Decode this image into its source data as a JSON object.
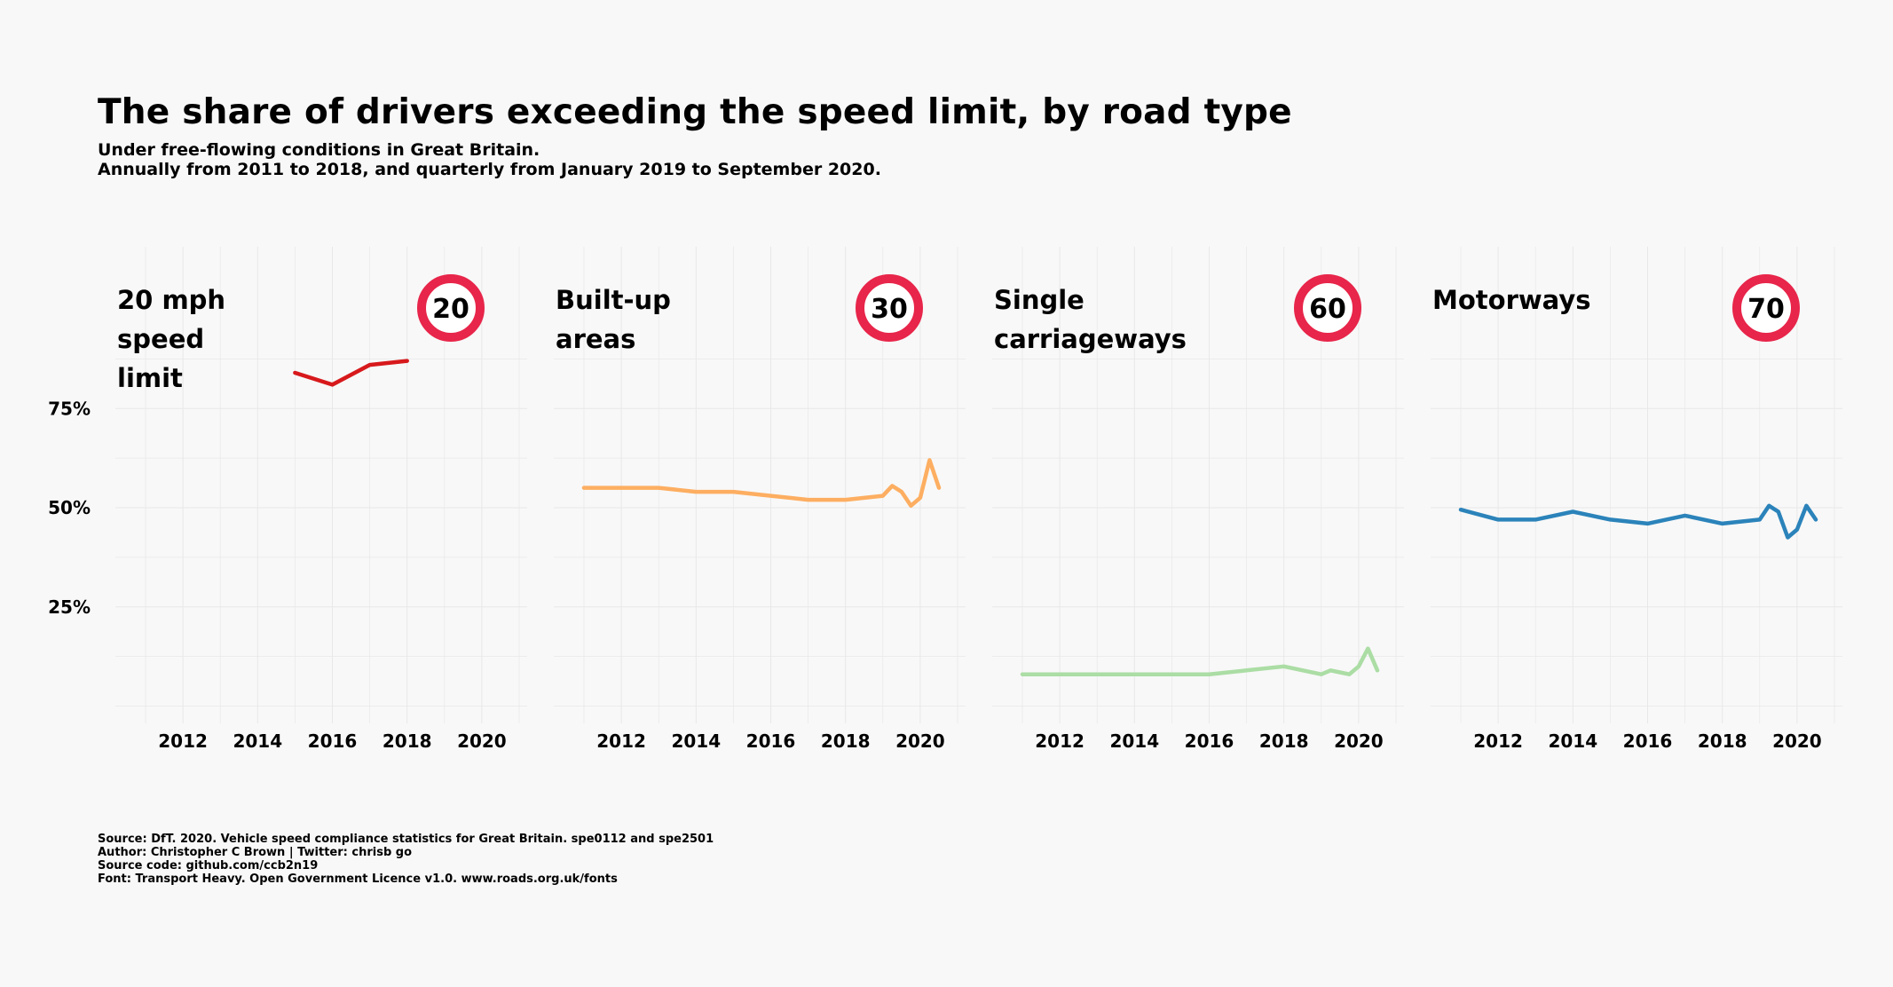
{
  "title": "The share of drivers exceeding the speed limit, by road type",
  "subtitle": [
    "Under free-flowing conditions in Great Britain.",
    "Annually from 2011 to 2018, and quarterly from January 2019 to September 2020."
  ],
  "caption": [
    "Source: DfT. 2020. Vehicle speed compliance statistics for Great Britain. spe0112 and spe2501",
    "Author: Christopher C Brown | Twitter: chrisb go",
    "Source code: github.com/ccb2n19",
    "Font: Transport Heavy. Open Government Licence v1.0. www.roads.org.uk/fonts"
  ],
  "colors": {
    "background": "#f8f8f8",
    "grid": "#e8e8e8",
    "badge_ring": "#e8254a"
  },
  "chart_data": {
    "type": "line",
    "ylim": [
      -5,
      90
    ],
    "xlim": [
      2010,
      2021
    ],
    "y_ticks": [
      25,
      50,
      75
    ],
    "y_tick_labels": [
      "25%",
      "50%",
      "75%"
    ],
    "x_ticks": [
      2012,
      2014,
      2016,
      2018,
      2020
    ],
    "x_tick_labels": [
      "2012",
      "2014",
      "2016",
      "2018",
      "2020"
    ],
    "grid": true,
    "facets": [
      {
        "title": [
          "20 mph",
          "speed",
          "limit"
        ],
        "speed_limit": "20",
        "color": "#d7191c",
        "x": [
          2015,
          2016,
          2017,
          2018
        ],
        "y": [
          84,
          81,
          86,
          87
        ]
      },
      {
        "title": [
          "Built-up",
          "areas"
        ],
        "speed_limit": "30",
        "color": "#fdae61",
        "x": [
          2011,
          2012,
          2013,
          2014,
          2015,
          2016,
          2017,
          2018,
          2019,
          2019.25,
          2019.5,
          2019.75,
          2020,
          2020.25,
          2020.5
        ],
        "y": [
          55,
          55,
          55,
          54,
          54,
          53,
          52,
          52,
          53,
          55.5,
          54,
          50.5,
          52.5,
          62,
          55
        ]
      },
      {
        "title": [
          "Single",
          "carriageways"
        ],
        "speed_limit": "60",
        "color": "#abdda4",
        "x": [
          2011,
          2012,
          2013,
          2014,
          2015,
          2016,
          2017,
          2018,
          2019,
          2019.25,
          2019.5,
          2019.75,
          2020,
          2020.25,
          2020.5
        ],
        "y": [
          8,
          8,
          8,
          8,
          8,
          8,
          9,
          10,
          8,
          9,
          8.5,
          8,
          10,
          14.5,
          9
        ]
      },
      {
        "title": [
          "Motorways"
        ],
        "speed_limit": "70",
        "color": "#2b83ba",
        "x": [
          2011,
          2012,
          2013,
          2014,
          2015,
          2016,
          2017,
          2018,
          2019,
          2019.25,
          2019.5,
          2019.75,
          2020,
          2020.25,
          2020.5
        ],
        "y": [
          49.5,
          47,
          47,
          49,
          47,
          46,
          48,
          46,
          47,
          50.5,
          49,
          42.5,
          44.5,
          50.5,
          47
        ]
      }
    ]
  }
}
